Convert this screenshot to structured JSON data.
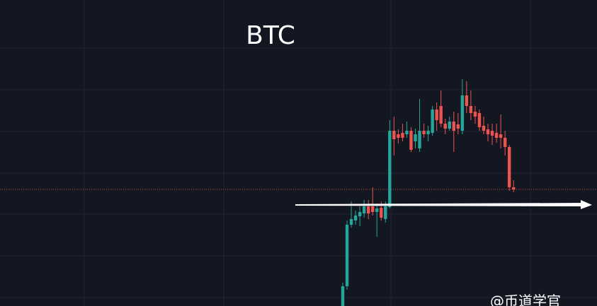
{
  "chart_data": {
    "type": "candlestick",
    "title": "BTC",
    "watermark": "@币道学官",
    "categories": [
      null,
      null,
      null,
      null,
      null,
      null,
      null,
      null,
      null,
      null,
      null,
      null,
      null,
      null,
      null,
      null,
      null,
      null,
      null,
      null,
      null,
      null,
      null,
      null,
      null,
      null,
      null,
      null,
      null,
      null,
      null,
      null,
      null,
      null,
      null,
      null,
      null,
      null,
      null,
      null,
      null
    ],
    "open": [
      0,
      28,
      115,
      121,
      127,
      131,
      141,
      141,
      133,
      139,
      123,
      140,
      248,
      243,
      245,
      243,
      248,
      233,
      223,
      248,
      243,
      245,
      278,
      283,
      258,
      251,
      261,
      257,
      248,
      298,
      283,
      275,
      273,
      255,
      250,
      248,
      245,
      243,
      238,
      225,
      168
    ],
    "high": [
      33,
      121,
      148,
      135,
      141,
      150,
      150,
      168,
      145,
      148,
      148,
      263,
      268,
      250,
      258,
      261,
      253,
      251,
      293,
      258,
      255,
      283,
      288,
      305,
      265,
      268,
      275,
      273,
      321,
      318,
      305,
      283,
      278,
      268,
      258,
      258,
      258,
      271,
      248,
      228,
      178
    ],
    "low": [
      0,
      23,
      111,
      115,
      113,
      125,
      123,
      128,
      98,
      121,
      118,
      138,
      213,
      230,
      233,
      238,
      218,
      223,
      218,
      238,
      233,
      241,
      248,
      253,
      243,
      248,
      218,
      243,
      243,
      273,
      263,
      258,
      248,
      243,
      233,
      228,
      231,
      223,
      213,
      163,
      161
    ],
    "close": [
      28,
      115,
      123,
      128,
      133,
      141,
      131,
      133,
      138,
      125,
      141,
      248,
      236,
      238,
      238,
      248,
      221,
      243,
      248,
      243,
      248,
      278,
      263,
      258,
      251,
      261,
      248,
      251,
      298,
      283,
      273,
      268,
      253,
      248,
      243,
      241,
      238,
      238,
      225,
      168,
      165
    ],
    "up_color": "#26a69a",
    "down_color": "#ef5350",
    "ylim": [
      0,
      433
    ]
  }
}
